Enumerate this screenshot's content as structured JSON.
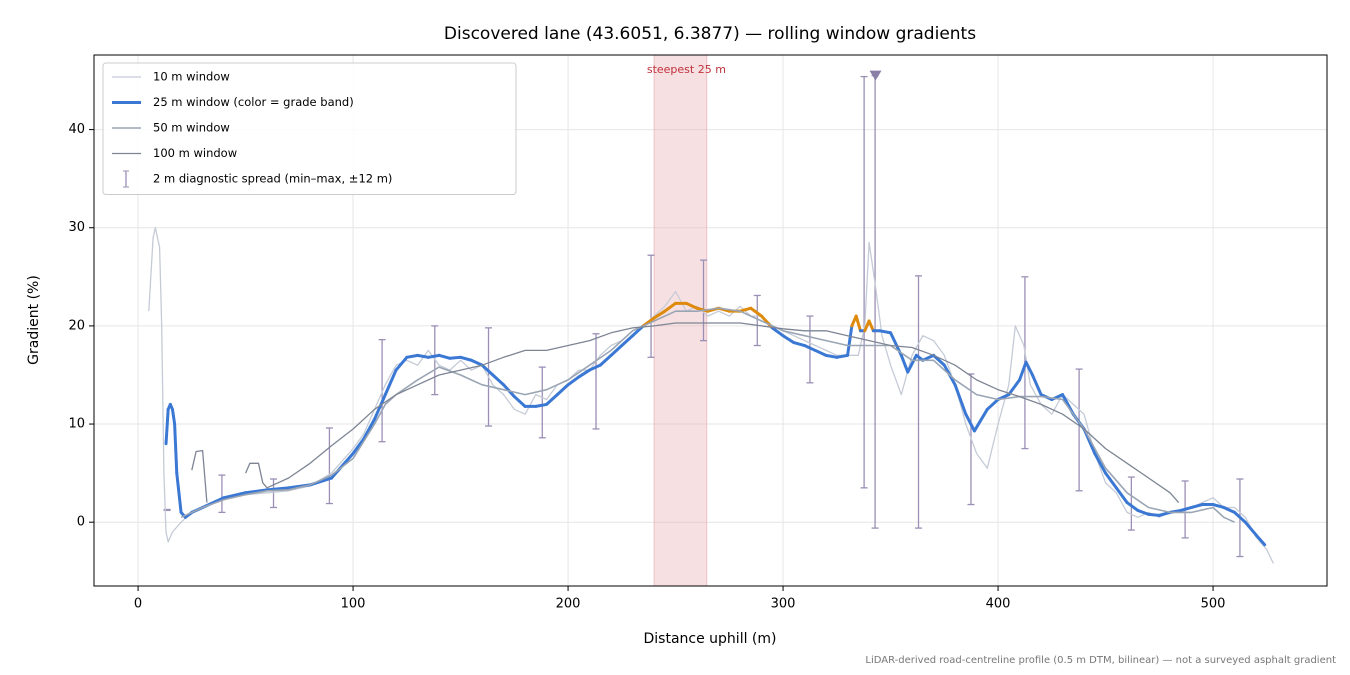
{
  "chart_data": {
    "type": "line",
    "title": "Discovered lane (43.6051, 6.3877) — rolling window gradients",
    "xlabel": "Distance uphill (m)",
    "ylabel": "Gradient (%)",
    "footnote": "LiDAR-derived road-centreline profile (0.5 m DTM, bilinear) — not a surveyed asphalt gradient",
    "xlim": [
      -20.5,
      553
    ],
    "ylim": [
      -6.5,
      47.6
    ],
    "xticks": [
      0,
      100,
      200,
      300,
      400,
      500
    ],
    "yticks": [
      0,
      10,
      20,
      30,
      40
    ],
    "grid": true,
    "legend": "upper left",
    "span": {
      "x": [
        240,
        264.5
      ],
      "color": "#e8a5ab",
      "label": "steepest 25 m",
      "label_color": "#c0303a"
    },
    "peak_marker": {
      "x": 343,
      "y": 45.5,
      "color": "#8a7fa6"
    },
    "series": [
      {
        "name": "10 m window",
        "color": "#c5cbd6",
        "width": 1.3,
        "x": [
          5,
          7,
          8,
          10,
          11,
          12,
          13,
          14,
          16,
          20,
          25,
          30,
          40,
          50,
          60,
          70,
          80,
          90,
          100,
          105,
          110,
          115,
          120,
          125,
          130,
          135,
          140,
          145,
          150,
          155,
          160,
          165,
          170,
          175,
          180,
          185,
          190,
          195,
          200,
          205,
          210,
          215,
          220,
          225,
          230,
          235,
          240,
          245,
          250,
          255,
          260,
          265,
          270,
          275,
          280,
          285,
          290,
          295,
          300,
          305,
          310,
          315,
          320,
          325,
          330,
          335,
          338,
          340,
          343,
          346,
          350,
          355,
          360,
          365,
          370,
          375,
          380,
          385,
          390,
          395,
          400,
          405,
          408,
          412,
          415,
          420,
          425,
          430,
          435,
          440,
          445,
          450,
          455,
          460,
          465,
          470,
          475,
          480,
          485,
          490,
          495,
          500,
          505,
          510,
          515,
          520,
          525,
          528
        ],
        "values": [
          21.5,
          29,
          30,
          28,
          20,
          5,
          -1,
          -2,
          -1,
          0,
          1,
          1.5,
          2.5,
          2.8,
          3,
          3.2,
          3.7,
          5,
          7.5,
          9,
          11.5,
          14,
          16,
          16.5,
          16,
          17.5,
          16,
          15.5,
          16.5,
          15.5,
          16,
          14,
          13,
          11.5,
          11,
          13,
          12.5,
          14,
          14.5,
          15.5,
          15.5,
          17,
          18,
          18.5,
          19.5,
          20,
          21,
          22,
          23.5,
          21.5,
          22,
          21,
          21.5,
          21,
          22,
          21,
          21,
          20,
          19.5,
          19,
          18.5,
          18,
          17.5,
          17,
          17,
          17,
          20,
          28.5,
          24,
          19,
          16,
          13,
          17,
          19,
          18.5,
          17,
          14,
          10,
          7,
          5.5,
          10,
          14,
          20,
          18,
          14,
          12,
          11,
          13,
          12,
          11,
          7,
          4,
          3,
          1,
          0.5,
          1,
          0.5,
          1,
          1,
          1.5,
          2,
          2.5,
          1.5,
          1.5,
          0.5,
          -1.5,
          -2.8,
          -4.2
        ]
      },
      {
        "name": "25 m window (color = grade band)",
        "color": "#3a78d4",
        "width": 3,
        "band_threshold": 20,
        "band_color": "#de8a0c",
        "x": [
          13,
          14,
          15,
          16,
          17,
          18,
          20,
          22,
          25,
          30,
          40,
          50,
          60,
          70,
          80,
          90,
          100,
          105,
          110,
          115,
          120,
          125,
          130,
          135,
          140,
          145,
          150,
          155,
          160,
          165,
          170,
          175,
          180,
          185,
          190,
          195,
          200,
          205,
          210,
          215,
          220,
          225,
          230,
          235,
          240,
          245,
          250,
          255,
          260,
          265,
          270,
          275,
          280,
          285,
          290,
          295,
          300,
          305,
          310,
          315,
          320,
          325,
          330,
          332,
          334,
          336,
          338,
          340,
          342,
          345,
          350,
          355,
          358,
          362,
          365,
          370,
          375,
          380,
          385,
          389,
          395,
          400,
          405,
          410,
          413,
          416,
          420,
          425,
          430,
          435,
          440,
          445,
          450,
          455,
          460,
          465,
          470,
          475,
          480,
          485,
          490,
          495,
          500,
          505,
          510,
          515,
          520,
          524
        ],
        "values": [
          8,
          11.5,
          12,
          11.5,
          10,
          5,
          1,
          0.5,
          1,
          1.5,
          2.5,
          3,
          3.3,
          3.5,
          3.8,
          4.5,
          7,
          8.5,
          10.5,
          13,
          15.5,
          16.8,
          17,
          16.8,
          17,
          16.7,
          16.8,
          16.5,
          16,
          15,
          14,
          12.8,
          11.8,
          11.8,
          12,
          13,
          14,
          14.8,
          15.5,
          16,
          17,
          18,
          19,
          20,
          20.8,
          21.5,
          22.3,
          22.3,
          21.8,
          21.5,
          21.8,
          21.5,
          21.5,
          21.8,
          21,
          19.8,
          19,
          18.3,
          18,
          17.5,
          17,
          16.8,
          17,
          20,
          21,
          19.5,
          19.5,
          20.5,
          19.5,
          19.5,
          19.3,
          17,
          15.3,
          17,
          16.5,
          17,
          16,
          14,
          11,
          9.3,
          11.5,
          12.5,
          13,
          14.5,
          16.3,
          15,
          13,
          12.5,
          13,
          11,
          9.5,
          7,
          5,
          3.5,
          2,
          1.2,
          0.8,
          0.7,
          1,
          1.2,
          1.5,
          1.8,
          1.8,
          1.5,
          1,
          0,
          -1.3,
          -2.3
        ]
      },
      {
        "name": "50 m window",
        "color": "#9aa5b4",
        "width": 1.6,
        "x": [
          20,
          30,
          40,
          50,
          60,
          70,
          80,
          90,
          100,
          110,
          115,
          120,
          130,
          140,
          150,
          160,
          170,
          180,
          190,
          200,
          210,
          220,
          230,
          240,
          250,
          260,
          270,
          280,
          290,
          300,
          310,
          320,
          330,
          340,
          350,
          360,
          370,
          380,
          390,
          400,
          410,
          420,
          430,
          440,
          450,
          460,
          470,
          480,
          490,
          500,
          505,
          510
        ],
        "values": [
          0.5,
          1.5,
          2.3,
          2.8,
          3.2,
          3.3,
          3.8,
          4.8,
          6.5,
          10,
          12,
          13,
          14.5,
          15.8,
          15,
          14,
          13.5,
          13,
          13.5,
          14.5,
          16,
          17.5,
          19.5,
          20.5,
          21.5,
          21.5,
          21.8,
          21.5,
          20.5,
          19.5,
          19,
          18.5,
          18,
          18,
          18,
          16.5,
          16.5,
          14.5,
          13,
          12.5,
          12.8,
          12.8,
          12.5,
          9.5,
          5.5,
          3,
          1.5,
          1,
          1,
          1.5,
          0.5,
          0
        ]
      },
      {
        "name": "100 m window",
        "color": "#7d8594",
        "width": 1.3,
        "x": [
          25,
          27,
          30,
          32,
          40,
          50,
          52,
          56,
          58,
          60,
          70,
          80,
          90,
          100,
          110,
          120,
          130,
          140,
          150,
          160,
          170,
          180,
          190,
          200,
          210,
          220,
          230,
          240,
          250,
          260,
          270,
          280,
          290,
          300,
          310,
          320,
          330,
          340,
          350,
          360,
          370,
          380,
          390,
          400,
          410,
          420,
          430,
          440,
          450,
          460,
          470,
          480,
          484
        ],
        "values": [
          5.3,
          7.2,
          7.3,
          2,
          null,
          5,
          6,
          6,
          4,
          3.5,
          4.5,
          6,
          7.8,
          9.5,
          11.5,
          13,
          14,
          15,
          15.5,
          16,
          16.8,
          17.5,
          17.5,
          18,
          18.5,
          19.3,
          19.8,
          20,
          20.3,
          20.3,
          20.3,
          20.3,
          20,
          19.7,
          19.5,
          19.5,
          19,
          18.5,
          18,
          17.8,
          17,
          16,
          14.5,
          13.5,
          12.8,
          12,
          11,
          9.5,
          7.5,
          6,
          4.5,
          3,
          2
        ]
      }
    ],
    "errorbars": {
      "name": "2 m diagnostic spread (min–max, ±12 m)",
      "color": "#9b8fb5",
      "x": [
        13.5,
        39,
        63,
        89,
        113.5,
        138,
        163,
        188,
        213,
        238.6,
        263,
        288,
        312.5,
        337.7,
        342.8,
        363,
        387.4,
        412.5,
        437.7,
        462,
        487,
        512.5
      ],
      "lower": [
        1.2,
        1,
        1.5,
        1.9,
        8.2,
        13,
        9.8,
        8.6,
        9.5,
        16.8,
        18.5,
        18,
        14.2,
        3.5,
        -0.6,
        -0.6,
        1.8,
        7.5,
        3.2,
        -0.8,
        -1.6,
        -3.5
      ],
      "upper": [
        1.3,
        4.8,
        4.4,
        9.6,
        18.6,
        20,
        19.8,
        15.8,
        19.2,
        27.2,
        26.7,
        23.1,
        21,
        45.4,
        45.5,
        25.1,
        15.1,
        25,
        15.6,
        4.6,
        4.2,
        4.4
      ]
    }
  }
}
